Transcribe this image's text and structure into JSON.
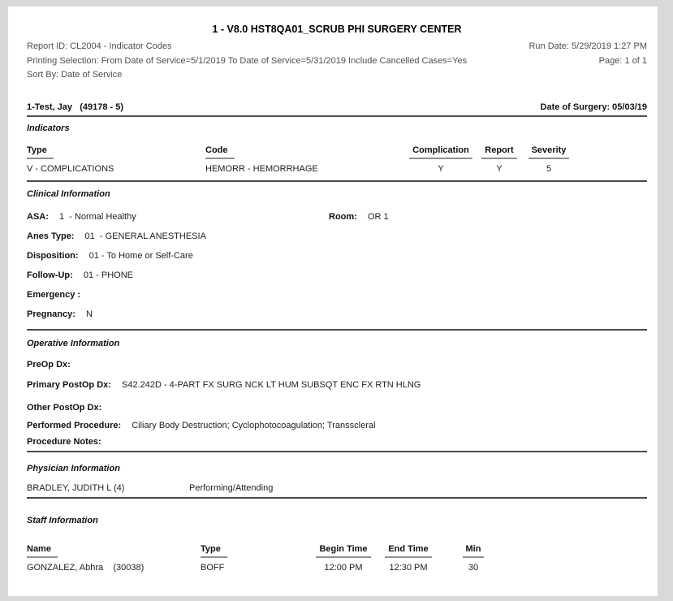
{
  "header": {
    "title": "1 - V8.0 HST8QA01_SCRUB PHI SURGERY CENTER",
    "report_id": "Report ID: CL2004 - Indicator Codes",
    "run_date": "Run Date: 5/29/2019 1:27 PM",
    "printing_selection": "Printing Selection: From Date of Service=5/1/2019 To Date of Service=5/31/2019 Include Cancelled Cases=Yes",
    "page_number": "Page: 1 of 1",
    "sort_by": "Sort By: Date of Service"
  },
  "patient": {
    "name": "1-Test, Jay   (49178 - 5)",
    "date_of_surgery": "Date of Surgery: 05/03/19"
  },
  "indicators": {
    "section_title": "Indicators",
    "columns": [
      "Type",
      "Code",
      "Complication",
      "Report",
      "Severity"
    ],
    "rows": [
      {
        "type": "V - COMPLICATIONS",
        "code": "HEMORR - HEMORRHAGE",
        "complication": "Y",
        "report": "Y",
        "severity": "5"
      }
    ]
  },
  "clinical": {
    "section_title": "Clinical Information",
    "rows": [
      {
        "label": "ASA:",
        "value": "1  - Normal Healthy",
        "label2": "Room:",
        "value2": "OR 1"
      },
      {
        "label": "Anes Type:",
        "value": "01  - GENERAL ANESTHESIA"
      },
      {
        "label": "Disposition:",
        "value": "01 - To Home or Self-Care"
      },
      {
        "label": "Follow-Up:",
        "value": "01 - PHONE"
      },
      {
        "label": "Emergency :",
        "value": ""
      },
      {
        "label": "Pregnancy:",
        "value": "N"
      }
    ]
  },
  "operative": {
    "section_title": "Operative Information",
    "rows": [
      {
        "label": "PreOp Dx:",
        "value": ""
      },
      {
        "label": "Primary PostOp Dx:",
        "value": "S42.242D - 4-PART FX SURG NCK LT HUM SUBSQT ENC FX RTN HLNG"
      },
      {
        "label": "Other PostOp Dx:",
        "value": ""
      },
      {
        "label": "Performed Procedure:",
        "value": "Ciliary Body Destruction; Cyclophotocoagulation; Transscleral"
      },
      {
        "label": "Procedure Notes:",
        "value": ""
      }
    ]
  },
  "physician": {
    "section_title": "Physician Information",
    "rows": [
      {
        "name": "BRADLEY, JUDITH L (4)",
        "role": "Performing/Attending"
      }
    ]
  },
  "staff": {
    "section_title": "Staff Information",
    "columns": [
      "Name",
      "Type",
      "Begin Time",
      "End Time",
      "Min"
    ],
    "rows": [
      {
        "name": "GONZALEZ, Abhra    (30038)",
        "type": "BOFF",
        "begin_time": "12:00 PM",
        "end_time": "12:30 PM",
        "min": "30"
      }
    ]
  }
}
